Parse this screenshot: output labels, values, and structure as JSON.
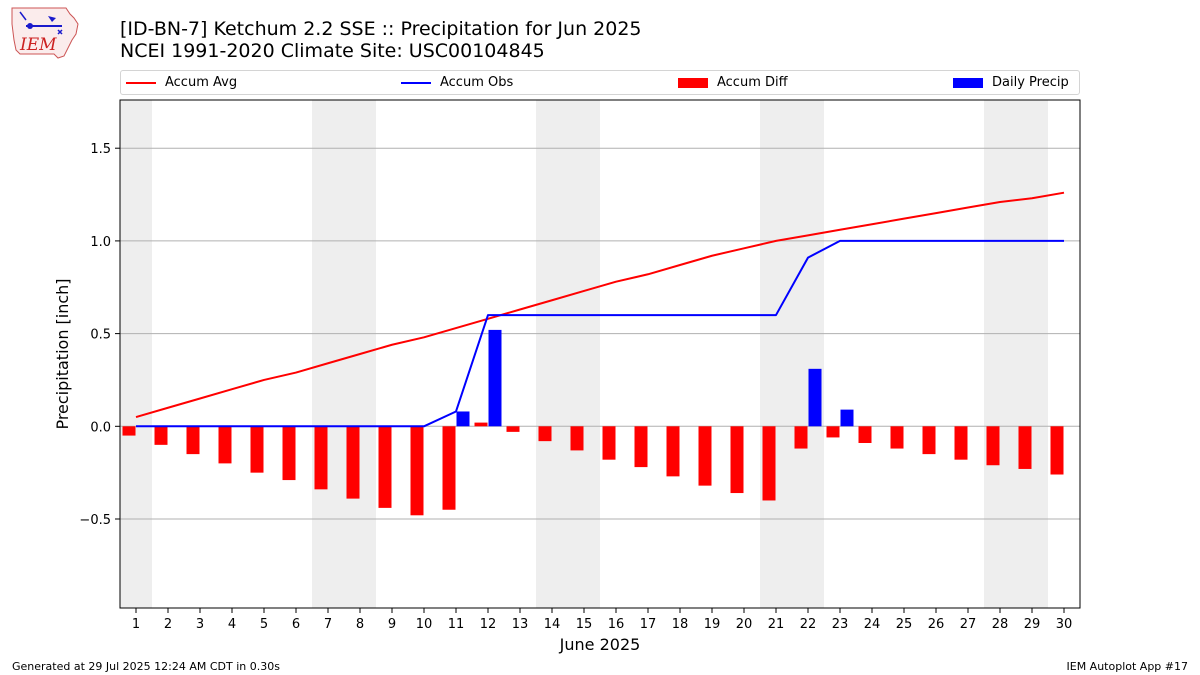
{
  "title_line1": "[ID-BN-7] Ketchum 2.2 SSE :: Precipitation for Jun 2025",
  "title_line2": "NCEI 1991-2020 Climate Site: USC00104845",
  "logo_text": "IEM",
  "footer_left": "Generated at 29 Jul 2025 12:24 AM CDT in 0.30s",
  "footer_right": "IEM Autoplot App #17",
  "colors": {
    "accum_avg": "#ff0000",
    "accum_obs": "#0000ff",
    "accum_diff": "#ff0000",
    "daily_precip": "#0000ff",
    "weekend_band": "#eeeeee",
    "grid": "#b0b0b0"
  },
  "chart_data": {
    "type": "bar",
    "xlabel": "June 2025",
    "ylabel": "Precipitation [inch]",
    "ylim": [
      -0.98,
      1.76
    ],
    "yticks": [
      -0.5,
      0.0,
      0.5,
      1.0,
      1.5
    ],
    "ytick_labels": [
      "−0.5",
      "0.0",
      "0.5",
      "1.0",
      "1.5"
    ],
    "x": [
      1,
      2,
      3,
      4,
      5,
      6,
      7,
      8,
      9,
      10,
      11,
      12,
      13,
      14,
      15,
      16,
      17,
      18,
      19,
      20,
      21,
      22,
      23,
      24,
      25,
      26,
      27,
      28,
      29,
      30
    ],
    "x_labels": [
      "1",
      "2",
      "3",
      "4",
      "5",
      "6",
      "7",
      "8",
      "9",
      "10",
      "11",
      "12",
      "13",
      "14",
      "15",
      "16",
      "17",
      "18",
      "19",
      "20",
      "21",
      "22",
      "23",
      "24",
      "25",
      "26",
      "27",
      "28",
      "29",
      "30"
    ],
    "weekend_days": [
      1,
      7,
      8,
      14,
      15,
      21,
      22,
      28,
      29
    ],
    "legend_placement": "top, above plot",
    "grid": "horizontal",
    "series": [
      {
        "name": "Accum Avg",
        "kind": "line",
        "values": [
          0.05,
          0.1,
          0.15,
          0.2,
          0.25,
          0.29,
          0.34,
          0.39,
          0.44,
          0.48,
          0.53,
          0.58,
          0.63,
          0.68,
          0.73,
          0.78,
          0.82,
          0.87,
          0.92,
          0.96,
          1.0,
          1.03,
          1.06,
          1.09,
          1.12,
          1.15,
          1.18,
          1.21,
          1.23,
          1.26
        ]
      },
      {
        "name": "Accum Obs",
        "kind": "line",
        "values": [
          0,
          0,
          0,
          0,
          0,
          0,
          0,
          0,
          0,
          0,
          0.08,
          0.6,
          0.6,
          0.6,
          0.6,
          0.6,
          0.6,
          0.6,
          0.6,
          0.6,
          0.6,
          0.91,
          1.0,
          1.0,
          1.0,
          1.0,
          1.0,
          1.0,
          1.0,
          1.0
        ]
      },
      {
        "name": "Accum Diff",
        "kind": "bar",
        "values": [
          -0.05,
          -0.1,
          -0.15,
          -0.2,
          -0.25,
          -0.29,
          -0.34,
          -0.39,
          -0.44,
          -0.48,
          -0.45,
          0.02,
          -0.03,
          -0.08,
          -0.13,
          -0.18,
          -0.22,
          -0.27,
          -0.32,
          -0.36,
          -0.4,
          -0.12,
          -0.06,
          -0.09,
          -0.12,
          -0.15,
          -0.18,
          -0.21,
          -0.23,
          -0.26
        ]
      },
      {
        "name": "Daily Precip",
        "kind": "bar",
        "values": [
          0,
          0,
          0,
          0,
          0,
          0,
          0,
          0,
          0,
          0,
          0.08,
          0.52,
          0,
          0,
          0,
          0,
          0,
          0,
          0,
          0,
          0,
          0.31,
          0.09,
          0,
          0,
          0,
          0,
          0,
          0,
          0
        ]
      }
    ]
  }
}
